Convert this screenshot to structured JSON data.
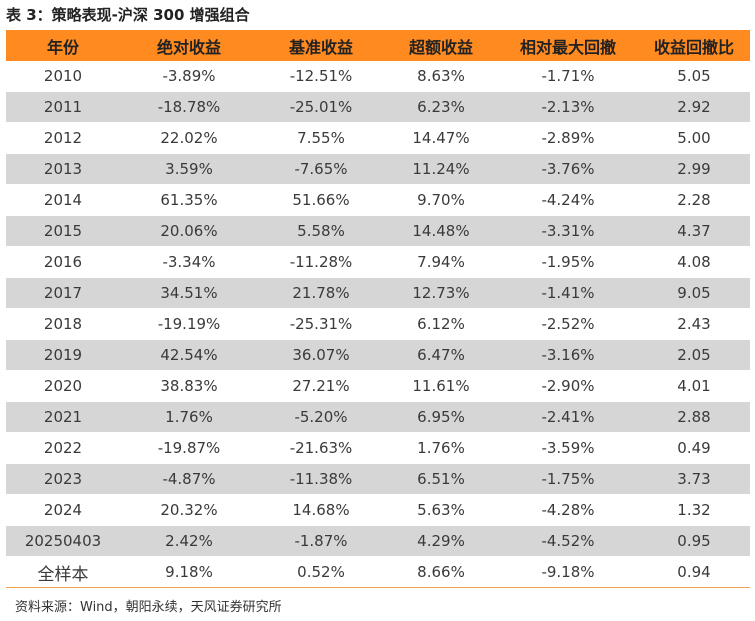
{
  "caption": "表 3：策略表现-沪深 300 增强组合",
  "headers": [
    "年份",
    "绝对收益",
    "基准收益",
    "超额收益",
    "相对最大回撤",
    "收益回撤比"
  ],
  "rows": [
    [
      "2010",
      "-3.89%",
      "-12.51%",
      "8.63%",
      "-1.71%",
      "5.05"
    ],
    [
      "2011",
      "-18.78%",
      "-25.01%",
      "6.23%",
      "-2.13%",
      "2.92"
    ],
    [
      "2012",
      "22.02%",
      "7.55%",
      "14.47%",
      "-2.89%",
      "5.00"
    ],
    [
      "2013",
      "3.59%",
      "-7.65%",
      "11.24%",
      "-3.76%",
      "2.99"
    ],
    [
      "2014",
      "61.35%",
      "51.66%",
      "9.70%",
      "-4.24%",
      "2.28"
    ],
    [
      "2015",
      "20.06%",
      "5.58%",
      "14.48%",
      "-3.31%",
      "4.37"
    ],
    [
      "2016",
      "-3.34%",
      "-11.28%",
      "7.94%",
      "-1.95%",
      "4.08"
    ],
    [
      "2017",
      "34.51%",
      "21.78%",
      "12.73%",
      "-1.41%",
      "9.05"
    ],
    [
      "2018",
      "-19.19%",
      "-25.31%",
      "6.12%",
      "-2.52%",
      "2.43"
    ],
    [
      "2019",
      "42.54%",
      "36.07%",
      "6.47%",
      "-3.16%",
      "2.05"
    ],
    [
      "2020",
      "38.83%",
      "27.21%",
      "11.61%",
      "-2.90%",
      "4.01"
    ],
    [
      "2021",
      "1.76%",
      "-5.20%",
      "6.95%",
      "-2.41%",
      "2.88"
    ],
    [
      "2022",
      "-19.87%",
      "-21.63%",
      "1.76%",
      "-3.59%",
      "0.49"
    ],
    [
      "2023",
      "-4.87%",
      "-11.38%",
      "6.51%",
      "-1.75%",
      "3.73"
    ],
    [
      "2024",
      "20.32%",
      "14.68%",
      "5.63%",
      "-4.28%",
      "1.32"
    ],
    [
      "20250403",
      "2.42%",
      "-1.87%",
      "4.29%",
      "-4.52%",
      "0.95"
    ],
    [
      "全样本",
      "9.18%",
      "0.52%",
      "8.66%",
      "-9.18%",
      "0.94"
    ]
  ],
  "source_note": "资料来源：Wind，朝阳永续，天风证券研究所",
  "colors": {
    "header_bg": "#ff8a1f",
    "stripe_bg": "#d6d6d6"
  }
}
